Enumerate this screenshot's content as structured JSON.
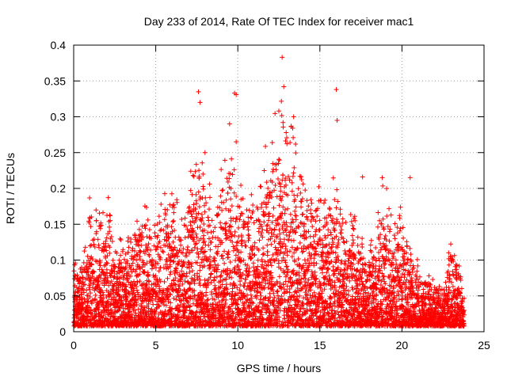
{
  "chart_data": {
    "type": "scatter",
    "title": "Day 233 of 2014, Rate Of TEC Index for receiver mac1",
    "xlabel": "GPS time / hours",
    "ylabel": "ROTI / TECUs",
    "xlim": [
      0,
      25
    ],
    "ylim": [
      0,
      0.4
    ],
    "xticks": [
      "0",
      "5",
      "10",
      "15",
      "20",
      "25"
    ],
    "yticks": [
      "0",
      "0.05",
      "0.1",
      "0.15",
      "0.2",
      "0.25",
      "0.3",
      "0.35",
      "0.4"
    ],
    "grid": true,
    "marker": "+",
    "series_color": "#ff0000",
    "density_envelope": {
      "description": "Approximate upper envelope of the dense point cloud (hours, ROTI)",
      "x": [
        0,
        0.5,
        1,
        1.5,
        2,
        2.5,
        3,
        3.5,
        4,
        4.5,
        5,
        5.5,
        6,
        6.5,
        7,
        7.5,
        8,
        8.5,
        9,
        9.5,
        10,
        10.5,
        11,
        11.5,
        12,
        12.5,
        13,
        13.5,
        14,
        14.5,
        15,
        15.5,
        16,
        16.5,
        17,
        17.5,
        18,
        18.5,
        19,
        19.5,
        20,
        20.5,
        21,
        21.5,
        22,
        22.5,
        23,
        23.5,
        23.8
      ],
      "y": [
        0.1,
        0.08,
        0.18,
        0.15,
        0.19,
        0.14,
        0.12,
        0.13,
        0.17,
        0.16,
        0.15,
        0.18,
        0.21,
        0.14,
        0.22,
        0.26,
        0.22,
        0.18,
        0.21,
        0.24,
        0.2,
        0.17,
        0.18,
        0.23,
        0.27,
        0.32,
        0.3,
        0.26,
        0.21,
        0.19,
        0.2,
        0.17,
        0.21,
        0.15,
        0.17,
        0.13,
        0.12,
        0.14,
        0.2,
        0.15,
        0.17,
        0.11,
        0.09,
        0.07,
        0.06,
        0.05,
        0.12,
        0.08,
        0.05
      ]
    },
    "outliers": {
      "x": [
        7.6,
        7.7,
        9.8,
        9.9,
        9.5,
        12.7,
        12.8,
        16.0,
        16.05,
        12.5,
        13.4,
        9.9,
        8.0,
        17.6,
        18.8,
        20.5
      ],
      "y": [
        0.335,
        0.32,
        0.333,
        0.331,
        0.29,
        0.383,
        0.342,
        0.338,
        0.295,
        0.308,
        0.3,
        0.265,
        0.25,
        0.216,
        0.215,
        0.215
      ]
    }
  }
}
